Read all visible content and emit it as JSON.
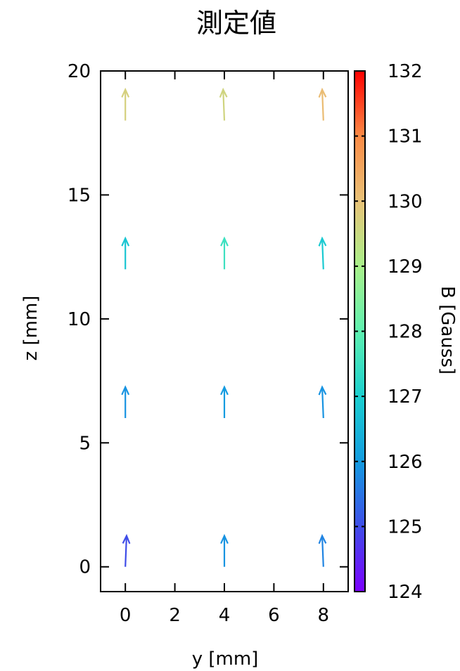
{
  "chart_data": {
    "type": "vector-field",
    "title": "測定値",
    "xlabel": "y [mm]",
    "ylabel": "z [mm]",
    "xlim": [
      -1,
      9
    ],
    "ylim": [
      -1,
      20
    ],
    "xticks": [
      0,
      2,
      4,
      6,
      8
    ],
    "yticks": [
      0,
      5,
      10,
      15,
      20
    ],
    "grid": false,
    "colorbar": {
      "label": "B [Gauss]",
      "range": [
        124,
        132
      ],
      "ticks": [
        124,
        125,
        126,
        127,
        128,
        129,
        130,
        131,
        132
      ],
      "colormap": "rainbow",
      "stops": [
        "#7b00ff",
        "#3f4de8",
        "#139be0",
        "#1bcfcf",
        "#5ef0b0",
        "#a9f08a",
        "#e8c278",
        "#fb8a45",
        "#ff0000"
      ]
    },
    "vectors": [
      {
        "y": 0,
        "z": 0,
        "dy": 0.05,
        "dz": 1.25,
        "B": 125.0
      },
      {
        "y": 4,
        "z": 0,
        "dy": 0.0,
        "dz": 1.25,
        "B": 125.9
      },
      {
        "y": 8,
        "z": 0,
        "dy": -0.05,
        "dz": 1.25,
        "B": 125.7
      },
      {
        "y": 0,
        "z": 6,
        "dy": 0.0,
        "dz": 1.25,
        "B": 125.9
      },
      {
        "y": 4,
        "z": 6,
        "dy": 0.0,
        "dz": 1.25,
        "B": 126.0
      },
      {
        "y": 8,
        "z": 6,
        "dy": -0.05,
        "dz": 1.25,
        "B": 125.9
      },
      {
        "y": 0,
        "z": 12,
        "dy": 0.0,
        "dz": 1.25,
        "B": 126.8
      },
      {
        "y": 4,
        "z": 12,
        "dy": 0.0,
        "dz": 1.25,
        "B": 127.5
      },
      {
        "y": 8,
        "z": 12,
        "dy": -0.05,
        "dz": 1.25,
        "B": 126.9
      },
      {
        "y": 0,
        "z": 18,
        "dy": 0.0,
        "dz": 1.25,
        "B": 129.7
      },
      {
        "y": 4,
        "z": 18,
        "dy": -0.05,
        "dz": 1.25,
        "B": 129.6
      },
      {
        "y": 8,
        "z": 18,
        "dy": -0.05,
        "dz": 1.25,
        "B": 130.1
      }
    ]
  }
}
